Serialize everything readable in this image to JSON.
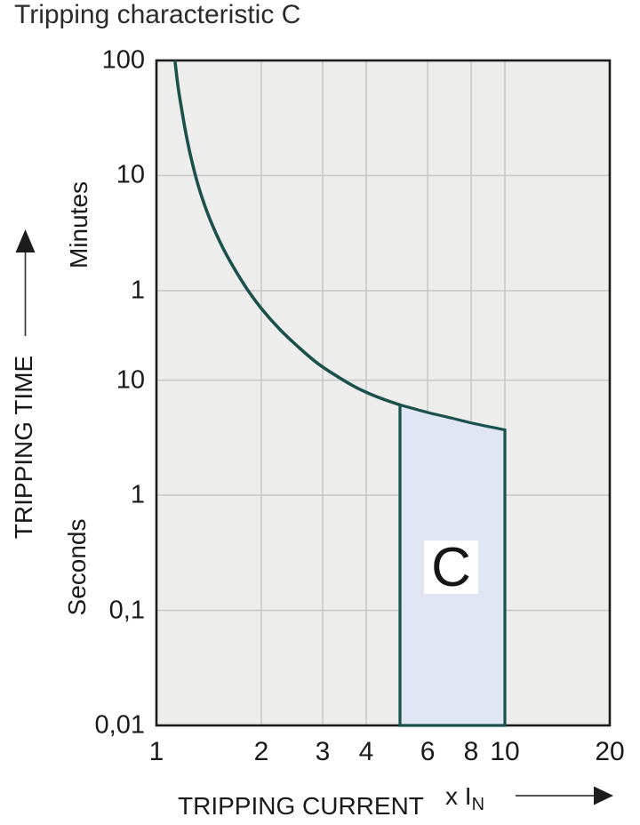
{
  "title": "Tripping characteristic C",
  "y_axis": {
    "label": "TRIPPING TIME",
    "unit_top": "Minutes",
    "unit_bottom": "Seconds"
  },
  "x_axis": {
    "label": "TRIPPING CURRENT",
    "unit_prefix": "x I",
    "unit_sub": "N"
  },
  "region_label": "C",
  "colors": {
    "curve": "#1b514d",
    "region_fill": "#dfe5f3",
    "region_border": "#1b514d",
    "plot_bg": "#ededec",
    "grid": "#c9c9c9",
    "axis_border": "#1c1c1c",
    "text": "#1a1a1a",
    "arrow": "#3a3a3a"
  },
  "chart_data": {
    "type": "line",
    "title": "Tripping characteristic C",
    "xlabel": "TRIPPING CURRENT (x IN)",
    "ylabel": "TRIPPING TIME",
    "x_scale": "log",
    "y_scale": "log",
    "x_range": [
      1,
      20
    ],
    "y_range_seconds": [
      0.01,
      6000
    ],
    "grid": true,
    "legend": "none",
    "x_ticks": [
      {
        "label": "1",
        "v": 1
      },
      {
        "label": "2",
        "v": 2
      },
      {
        "label": "3",
        "v": 3
      },
      {
        "label": "4",
        "v": 4
      },
      {
        "label": "6",
        "v": 6
      },
      {
        "label": "8",
        "v": 8
      },
      {
        "label": "10",
        "v": 10
      },
      {
        "label": "20",
        "v": 20
      }
    ],
    "y_ticks": [
      {
        "label": "100",
        "seconds": 6000,
        "unit": "minutes"
      },
      {
        "label": "10",
        "seconds": 600,
        "unit": "minutes"
      },
      {
        "label": "1",
        "seconds": 60,
        "unit": "minutes"
      },
      {
        "label": "10",
        "seconds": 10,
        "unit": "seconds"
      },
      {
        "label": "1",
        "seconds": 1,
        "unit": "seconds"
      },
      {
        "label": "0,1",
        "seconds": 0.1,
        "unit": "seconds"
      },
      {
        "label": "0,01",
        "seconds": 0.01,
        "unit": "seconds"
      }
    ],
    "gridline_x_values": [
      2,
      3,
      4,
      6,
      8,
      10
    ],
    "gridline_y_seconds": [
      600,
      60,
      10,
      1,
      0.1
    ],
    "series": [
      {
        "name": "thermal-trip-curve",
        "points_x_in_t_seconds": [
          [
            1.13,
            6000
          ],
          [
            1.15,
            3800
          ],
          [
            1.18,
            2300
          ],
          [
            1.22,
            1300
          ],
          [
            1.27,
            750
          ],
          [
            1.33,
            450
          ],
          [
            1.41,
            270
          ],
          [
            1.52,
            160
          ],
          [
            1.65,
            100
          ],
          [
            1.82,
            62
          ],
          [
            2.0,
            42
          ],
          [
            2.25,
            28
          ],
          [
            2.55,
            19.5
          ],
          [
            2.9,
            14
          ],
          [
            3.3,
            10.8
          ],
          [
            3.7,
            8.8
          ],
          [
            4.1,
            7.6
          ],
          [
            4.5,
            6.8
          ],
          [
            5.0,
            6.1
          ]
        ]
      }
    ],
    "region": {
      "label": "C",
      "x_from": 5,
      "x_to": 10,
      "t_bottom_seconds": 0.01,
      "top_points_x_in_t_seconds": [
        [
          5,
          6.1
        ],
        [
          6,
          5.25
        ],
        [
          7,
          4.7
        ],
        [
          8,
          4.25
        ],
        [
          9,
          3.95
        ],
        [
          10,
          3.7
        ]
      ]
    }
  }
}
